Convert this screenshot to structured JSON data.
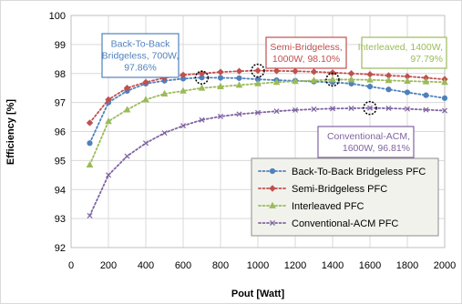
{
  "chart_data": {
    "type": "line",
    "xlabel": "Pout [Watt]",
    "ylabel": "Efficiency [%]",
    "xlim": [
      0,
      2000
    ],
    "ylim": [
      92,
      100
    ],
    "x_ticks": [
      0,
      200,
      400,
      600,
      800,
      1000,
      1200,
      1400,
      1600,
      1800,
      2000
    ],
    "y_ticks": [
      92,
      93,
      94,
      95,
      96,
      97,
      98,
      99,
      100
    ],
    "grid": true,
    "legend_position": "bottom-right",
    "series": [
      {
        "name": "Back-To-Back Bridgeless PFC",
        "color": "#4f81bd",
        "marker": "circle",
        "x": [
          100,
          200,
          300,
          400,
          500,
          600,
          700,
          800,
          900,
          1000,
          1100,
          1200,
          1300,
          1400,
          1500,
          1600,
          1700,
          1800,
          1900,
          2000
        ],
        "y": [
          95.6,
          97.0,
          97.4,
          97.65,
          97.75,
          97.82,
          97.86,
          97.85,
          97.84,
          97.8,
          97.77,
          97.75,
          97.72,
          97.7,
          97.65,
          97.55,
          97.45,
          97.35,
          97.25,
          97.15
        ]
      },
      {
        "name": "Semi-Bridgeless PFC",
        "color": "#c0504d",
        "marker": "diamond",
        "x": [
          100,
          200,
          300,
          400,
          500,
          600,
          700,
          800,
          900,
          1000,
          1100,
          1200,
          1300,
          1400,
          1500,
          1600,
          1700,
          1800,
          1900,
          2000
        ],
        "y": [
          96.3,
          97.1,
          97.5,
          97.7,
          97.85,
          97.95,
          98.0,
          98.05,
          98.08,
          98.1,
          98.09,
          98.08,
          98.06,
          98.03,
          98.0,
          97.97,
          97.93,
          97.9,
          97.85,
          97.8
        ]
      },
      {
        "name": "Interleaved PFC",
        "color": "#9bbb59",
        "marker": "triangle",
        "x": [
          100,
          200,
          300,
          400,
          500,
          600,
          700,
          800,
          900,
          1000,
          1100,
          1200,
          1300,
          1400,
          1500,
          1600,
          1700,
          1800,
          1900,
          2000
        ],
        "y": [
          94.85,
          96.35,
          96.75,
          97.1,
          97.3,
          97.4,
          97.5,
          97.55,
          97.6,
          97.65,
          97.7,
          97.73,
          97.76,
          97.79,
          97.79,
          97.78,
          97.76,
          97.74,
          97.72,
          97.7
        ]
      },
      {
        "name": "Conventional-ACM PFC",
        "color": "#8064a2",
        "marker": "x",
        "x": [
          100,
          200,
          300,
          400,
          500,
          600,
          700,
          800,
          900,
          1000,
          1100,
          1200,
          1300,
          1400,
          1500,
          1600,
          1700,
          1800,
          1900,
          2000
        ],
        "y": [
          93.1,
          94.5,
          95.15,
          95.6,
          95.95,
          96.2,
          96.4,
          96.52,
          96.6,
          96.65,
          96.7,
          96.74,
          96.77,
          96.79,
          96.8,
          96.81,
          96.8,
          96.78,
          96.75,
          96.72
        ]
      }
    ],
    "annotations": [
      {
        "text_lines": [
          "Back-To-Back",
          "Bridgeless, 700W,",
          "97.86%"
        ],
        "color": "#4f81bd",
        "point": [
          700,
          97.86
        ]
      },
      {
        "text_lines": [
          "Semi-Bridgeless,",
          "1000W, 98.10%"
        ],
        "color": "#c0504d",
        "point": [
          1000,
          98.1
        ]
      },
      {
        "text_lines": [
          "Interleaved, 1400W,",
          "97.79%"
        ],
        "color": "#9bbb59",
        "point": [
          1400,
          97.79
        ]
      },
      {
        "text_lines": [
          "Conventional-ACM,",
          "1600W, 96.81%"
        ],
        "color": "#8064a2",
        "point": [
          1600,
          96.81
        ]
      }
    ]
  }
}
